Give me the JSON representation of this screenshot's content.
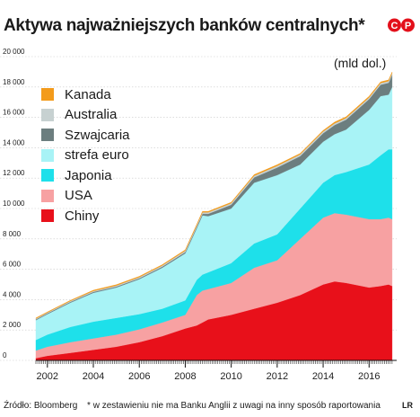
{
  "title": "Aktywa najważniejszych banków centralnych*",
  "unit_label": "(mld dol.)",
  "source": "Źródło: Bloomberg",
  "footnote": "* w zestawieniu nie ma Banku Anglii z uwagi na inny sposób raportowania",
  "footer_mark": "LR",
  "logo_text": "CP",
  "chart_data": {
    "type": "area",
    "stacked": true,
    "ylim": [
      0,
      20000
    ],
    "xlim": [
      2001.5,
      2017.2
    ],
    "y_ticks": [
      "0",
      "2 000",
      "4 000",
      "6 000",
      "8 000",
      "10 000",
      "12 000",
      "14 000",
      "16 000",
      "18 000",
      "20 000"
    ],
    "x_ticks": [
      "2002",
      "2004",
      "2006",
      "2008",
      "2010",
      "2012",
      "2014",
      "2016"
    ],
    "grid": true,
    "legend_position": "top-left",
    "x": [
      2001.5,
      2002,
      2003,
      2004,
      2005,
      2006,
      2007,
      2008,
      2008.5,
      2008.75,
      2009,
      2010,
      2011,
      2012,
      2013,
      2014,
      2014.5,
      2015,
      2016,
      2016.5,
      2016.85,
      2017
    ],
    "series": [
      {
        "name": "Chiny",
        "color": "#e8101a",
        "values": [
          150,
          300,
          500,
          700,
          900,
          1200,
          1600,
          2100,
          2300,
          2500,
          2700,
          3000,
          3400,
          3800,
          4300,
          5000,
          5200,
          5100,
          4800,
          4900,
          5000,
          4900
        ]
      },
      {
        "name": "USA",
        "color": "#f7a1a2",
        "values": [
          500,
          600,
          700,
          750,
          800,
          850,
          900,
          900,
          2000,
          2100,
          2000,
          2100,
          2700,
          2800,
          3700,
          4400,
          4500,
          4500,
          4500,
          4400,
          4400,
          4400
        ]
      },
      {
        "name": "Japonia",
        "color": "#1ee0ea",
        "values": [
          700,
          800,
          1000,
          1100,
          1100,
          1000,
          900,
          950,
          1000,
          1050,
          1100,
          1300,
          1600,
          1700,
          2000,
          2300,
          2500,
          2800,
          3600,
          4200,
          4500,
          4600
        ]
      },
      {
        "name": "strefa euro",
        "color": "#a8f3f6",
        "values": [
          1300,
          1350,
          1600,
          1900,
          2000,
          2300,
          2700,
          3100,
          3400,
          3900,
          3700,
          3600,
          4000,
          3900,
          2900,
          2700,
          2700,
          2800,
          3600,
          3900,
          3600,
          4100
        ]
      },
      {
        "name": "Szwajcaria",
        "color": "#6c7e7f",
        "values": [
          50,
          50,
          50,
          60,
          60,
          60,
          70,
          80,
          90,
          100,
          150,
          250,
          350,
          500,
          550,
          560,
          600,
          650,
          700,
          750,
          780,
          800
        ]
      },
      {
        "name": "Australia",
        "color": "#c7d1d1",
        "values": [
          50,
          50,
          60,
          60,
          70,
          70,
          80,
          90,
          100,
          100,
          100,
          100,
          110,
          110,
          110,
          110,
          110,
          110,
          110,
          110,
          110,
          110
        ]
      },
      {
        "name": "Kanada",
        "color": "#f39b1b",
        "values": [
          40,
          40,
          40,
          50,
          50,
          50,
          50,
          60,
          60,
          60,
          60,
          60,
          70,
          70,
          70,
          70,
          80,
          80,
          80,
          80,
          80,
          80
        ]
      }
    ]
  }
}
